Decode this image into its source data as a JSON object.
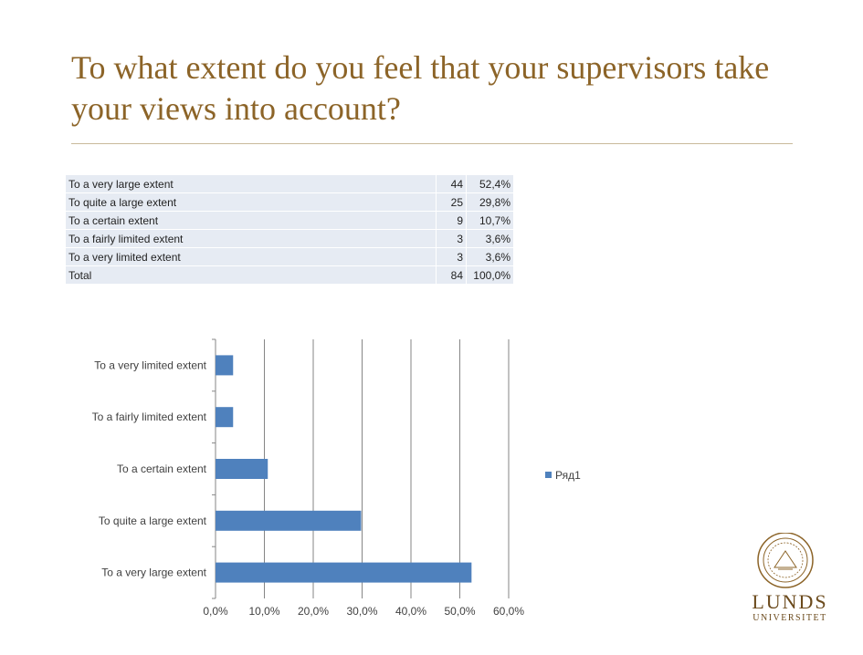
{
  "slide": {
    "title": "To what extent do you feel that your supervisors take your views into account?"
  },
  "table": {
    "rows": [
      {
        "label": "To a very large extent",
        "count": "44",
        "percent": "52,4%"
      },
      {
        "label": "To quite a large extent",
        "count": "25",
        "percent": "29,8%"
      },
      {
        "label": "To a certain extent",
        "count": "9",
        "percent": "10,7%"
      },
      {
        "label": "To a fairly limited extent",
        "count": "3",
        "percent": "3,6%"
      },
      {
        "label": "To a very limited extent",
        "count": "3",
        "percent": "3,6%"
      },
      {
        "label": "Total",
        "count": "84",
        "percent": "100,0%"
      }
    ]
  },
  "chart_data": {
    "type": "bar",
    "orientation": "horizontal",
    "categories": [
      "To a very large extent",
      "To quite a large extent",
      "To a certain extent",
      "To a fairly limited extent",
      "To a very limited extent"
    ],
    "series": [
      {
        "name": "Ряд1",
        "values": [
          52.4,
          29.8,
          10.7,
          3.6,
          3.6
        ],
        "color": "#4f81bd"
      }
    ],
    "xlim": [
      0,
      60
    ],
    "xticks": [
      0,
      10,
      20,
      30,
      40,
      50,
      60
    ],
    "xtick_labels": [
      "0,0%",
      "10,0%",
      "20,0%",
      "30,0%",
      "40,0%",
      "50,0%",
      "60,0%"
    ],
    "grid": "vertical",
    "legend": "right"
  },
  "logo": {
    "name": "Lunds universitet seal",
    "line1": "LUNDS",
    "line2": "UNIVERSITET",
    "color": "#8c6428"
  }
}
